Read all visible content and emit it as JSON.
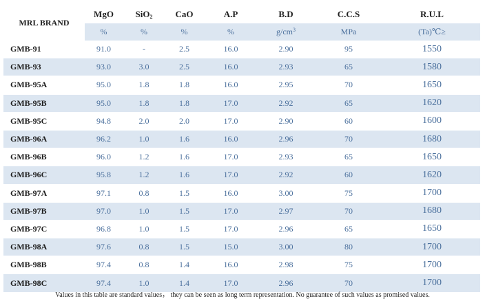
{
  "table": {
    "brand_header": "MRL BRAND",
    "columns": [
      {
        "name": "MgO",
        "unit": "%"
      },
      {
        "name": "SiO",
        "sub": "2",
        "unit": "%"
      },
      {
        "name": "CaO",
        "unit": "%"
      },
      {
        "name": "A.P",
        "unit": "%"
      },
      {
        "name": "B.D",
        "unit": "g/cm",
        "unit_sup": "3"
      },
      {
        "name": "C.C.S",
        "unit": "MPa"
      },
      {
        "name": "R.U.L",
        "unit": "(Ta)℃≥"
      }
    ],
    "rows": [
      [
        "GMB-91",
        "91.0",
        "-",
        "2.5",
        "16.0",
        "2.90",
        "95",
        "1550"
      ],
      [
        "GMB-93",
        "93.0",
        "3.0",
        "2.5",
        "16.0",
        "2.93",
        "65",
        "1580"
      ],
      [
        "GMB-95A",
        "95.0",
        "1.8",
        "1.8",
        "16.0",
        "2.95",
        "70",
        "1650"
      ],
      [
        "GMB-95B",
        "95.0",
        "1.8",
        "1.8",
        "17.0",
        "2.92",
        "65",
        "1620"
      ],
      [
        "GMB-95C",
        "94.8",
        "2.0",
        "2.0",
        "17.0",
        "2.90",
        "60",
        "1600"
      ],
      [
        "GMB-96A",
        "96.2",
        "1.0",
        "1.6",
        "16.0",
        "2.96",
        "70",
        "1680"
      ],
      [
        "GMB-96B",
        "96.0",
        "1.2",
        "1.6",
        "17.0",
        "2.93",
        "65",
        "1650"
      ],
      [
        "GMB-96C",
        "95.8",
        "1.2",
        "1.6",
        "17.0",
        "2.92",
        "60",
        "1620"
      ],
      [
        "GMB-97A",
        "97.1",
        "0.8",
        "1.5",
        "16.0",
        "3.00",
        "75",
        "1700"
      ],
      [
        "GMB-97B",
        "97.0",
        "1.0",
        "1.5",
        "17.0",
        "2.97",
        "70",
        "1680"
      ],
      [
        "GMB-97C",
        "96.8",
        "1.0",
        "1.5",
        "17.0",
        "2.96",
        "65",
        "1650"
      ],
      [
        "GMB-98A",
        "97.6",
        "0.8",
        "1.5",
        "15.0",
        "3.00",
        "80",
        "1700"
      ],
      [
        "GMB-98B",
        "97.4",
        "0.8",
        "1.4",
        "16.0",
        "2.98",
        "75",
        "1700"
      ],
      [
        "GMB-98C",
        "97.4",
        "1.0",
        "1.4",
        "17.0",
        "2.96",
        "70",
        "1700"
      ]
    ]
  },
  "note": "Values in this table are standard values， they can be seen as long term representation. No guarantee of such values as promised values."
}
